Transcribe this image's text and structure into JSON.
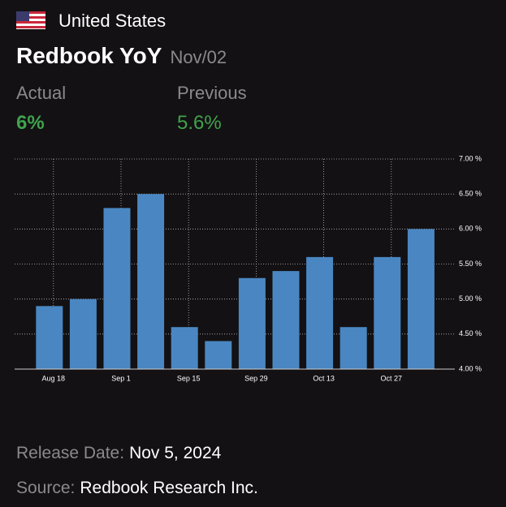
{
  "header": {
    "country": "United States",
    "title": "Redbook YoY",
    "period": "Nov/02"
  },
  "stats": {
    "actual_label": "Actual",
    "actual_value": "6%",
    "previous_label": "Previous",
    "previous_value": "5.6%"
  },
  "chart_data": {
    "type": "bar",
    "categories": [
      "Aug 18",
      null,
      "Sep 1",
      null,
      "Sep 15",
      null,
      "Sep 29",
      null,
      "Oct 13",
      null,
      "Oct 27",
      null
    ],
    "values": [
      4.9,
      5.0,
      6.3,
      6.5,
      4.6,
      4.4,
      5.3,
      5.4,
      5.6,
      4.6,
      5.6,
      6.0
    ],
    "color": "#4a87c2",
    "ylim": [
      4,
      7
    ],
    "yticks": [
      {
        "value": 4,
        "label": "4.00 %"
      },
      {
        "value": 4.5,
        "label": "4.50 %"
      },
      {
        "value": 5,
        "label": "5.00 %"
      },
      {
        "value": 5.5,
        "label": "5.50 %"
      },
      {
        "value": 6,
        "label": "6.00 %"
      },
      {
        "value": 6.5,
        "label": "6.50 %"
      },
      {
        "value": 7,
        "label": "7.00 %"
      }
    ],
    "grid": true
  },
  "footer": {
    "release_label": "Release Date:",
    "release_value": "Nov 5, 2024",
    "source_label": "Source:",
    "source_value": "Redbook Research Inc."
  }
}
